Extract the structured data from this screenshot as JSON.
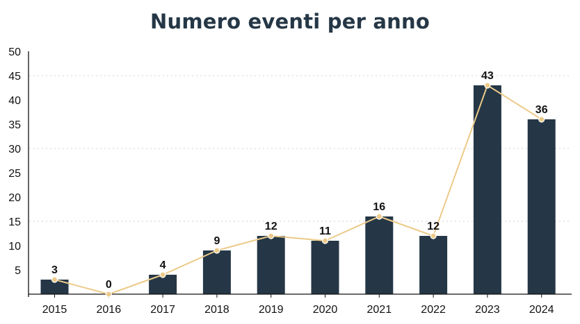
{
  "chart_data": {
    "type": "bar",
    "title": "Numero eventi per anno",
    "xlabel": "",
    "ylabel": "",
    "categories": [
      "2015",
      "2016",
      "2017",
      "2018",
      "2019",
      "2020",
      "2021",
      "2022",
      "2023",
      "2024"
    ],
    "values": [
      3,
      0,
      4,
      9,
      12,
      11,
      16,
      12,
      43,
      36
    ],
    "overlay_line": true,
    "data_labels": true,
    "ylim": [
      0,
      50
    ],
    "y_ticks": [
      5,
      10,
      15,
      20,
      25,
      30,
      35,
      40,
      45,
      50
    ],
    "grid": "dotted horizontal at 15, 30, 45",
    "legend": "none",
    "colors": {
      "bar": "#253746",
      "line": "#ecca8a",
      "title": "#253746",
      "grid": "#d9d9d9",
      "axis": "#111111"
    }
  }
}
